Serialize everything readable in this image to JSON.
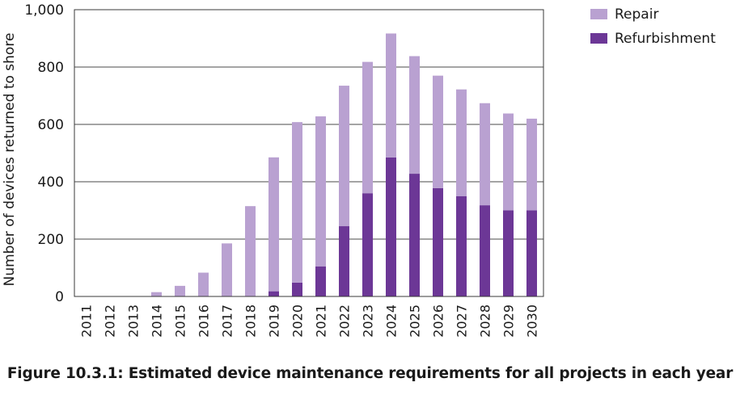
{
  "chart_data": {
    "type": "bar",
    "stacked": true,
    "title": "",
    "xlabel": "",
    "ylabel": "Number of devices returned to shore",
    "ylim": [
      0,
      1000
    ],
    "yticks": [
      0,
      200,
      400,
      600,
      800,
      1000
    ],
    "ytick_labels": [
      "0",
      "200",
      "400",
      "600",
      "800",
      "1,000"
    ],
    "grid": "horizontal",
    "legend_position": "top-right",
    "categories": [
      "2011",
      "2012",
      "2013",
      "2014",
      "2015",
      "2016",
      "2017",
      "2018",
      "2019",
      "2020",
      "2021",
      "2022",
      "2023",
      "2024",
      "2025",
      "2026",
      "2027",
      "2028",
      "2029",
      "2030"
    ],
    "series": [
      {
        "name": "Refurbishment",
        "color": "#6c3796",
        "values": [
          0,
          0,
          0,
          0,
          0,
          0,
          0,
          0,
          18,
          48,
          105,
          245,
          360,
          485,
          428,
          378,
          350,
          318,
          300,
          300
        ]
      },
      {
        "name": "Repair",
        "color": "#b9a1d1",
        "values": [
          0,
          0,
          0,
          15,
          37,
          83,
          185,
          315,
          467,
          560,
          523,
          490,
          458,
          432,
          410,
          392,
          372,
          356,
          338,
          320
        ]
      }
    ]
  },
  "caption": "Figure 10.3.1: Estimated device maintenance requirements for all projects in each year"
}
